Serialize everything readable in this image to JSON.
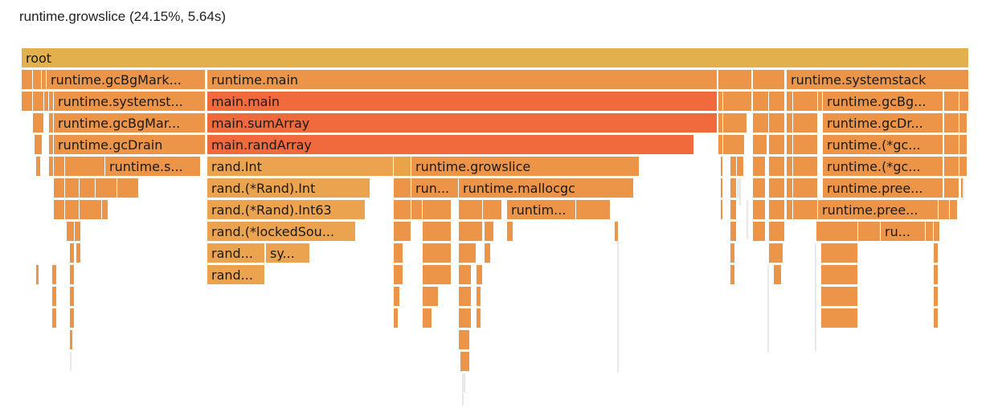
{
  "header": {
    "selected_info": "runtime.growslice (24.15%, 5.64s)"
  },
  "colors": {
    "root": "#e2b04c",
    "runtime": "#ec9549",
    "main_hot": "#f06a3e",
    "main_warm": "#f07a42",
    "rand": "#eba34f",
    "selected": "#e8a446",
    "thin": "#e8e8e8"
  },
  "flame": {
    "root": {
      "label": "root"
    },
    "level1": {
      "gc_bg_mark": "runtime.gcBgMark...",
      "runtime_main": "runtime.main",
      "systemstack": "runtime.systemstack"
    },
    "level2": {
      "systemstack_short": "runtime.systemst...",
      "main_main": "main.main",
      "gc_bg_short": "runtime.gcBg..."
    },
    "level3": {
      "gc_bg_mar": "runtime.gcBgMar...",
      "sum_array": "main.sumArray",
      "gc_dr": "runtime.gcDr..."
    },
    "level4": {
      "gc_drain": "runtime.gcDrain",
      "rand_array": "main.randArray",
      "gc_star": "runtime.(*gc..."
    },
    "level5": {
      "runtime_s": "runtime.s...",
      "rand_int": "rand.Int",
      "growslice": "runtime.growslice",
      "gc_star2": "runtime.(*gc..."
    },
    "level6": {
      "rand_rand_int": "rand.(*Rand).Int",
      "run": "run...",
      "mallocgc": "runtime.mallocgc",
      "pree": "runtime.pree..."
    },
    "level7": {
      "rand_int63": "rand.(*Rand).Int63",
      "runtim": "runtim...",
      "pree2": "runtime.pree..."
    },
    "level8": {
      "locked_sou": "rand.(*lockedSou...",
      "ru": "ru..."
    },
    "level9": {
      "rand_short": "rand...",
      "sy": "sy..."
    },
    "level10": {
      "rand_short2": "rand..."
    }
  }
}
